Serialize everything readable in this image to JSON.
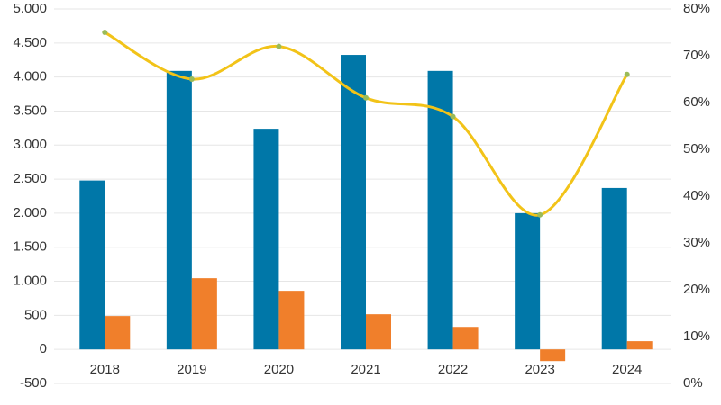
{
  "chart_data": {
    "type": "bar",
    "categories": [
      "2018",
      "2019",
      "2020",
      "2021",
      "2022",
      "2023",
      "2024"
    ],
    "series": [
      {
        "color": "#0077a8",
        "values": [
          2480,
          4090,
          3240,
          4325,
          4090,
          2000,
          2370
        ]
      },
      {
        "color": "#f07f2b",
        "values": [
          490,
          1045,
          860,
          516,
          330,
          -172,
          120
        ]
      },
      {
        "type": "line",
        "axis": "y2",
        "color": "#f2c318",
        "marker_color": "#9bbb59",
        "values": [
          75,
          65,
          72,
          61,
          57,
          36,
          66
        ]
      }
    ],
    "ylim": [
      -500,
      5000
    ],
    "yticks": [
      -500,
      0,
      500,
      {
        "value": 1000,
        "label": "1.000"
      },
      {
        "value": 1500,
        "label": "1.500"
      },
      {
        "value": 2000,
        "label": "2.000"
      },
      {
        "value": 2500,
        "label": "2.500"
      },
      {
        "value": 3000,
        "label": "3.000"
      },
      {
        "value": 3500,
        "label": "3.500"
      },
      {
        "value": 4000,
        "label": "4.000"
      },
      {
        "value": 4500,
        "label": "4.500"
      },
      {
        "value": 5000,
        "label": "5.000"
      }
    ],
    "y2lim": [
      0,
      80
    ],
    "y2ticks": [
      {
        "value": 0,
        "label": "0%"
      },
      {
        "value": 10,
        "label": "10%"
      },
      {
        "value": 20,
        "label": "20%"
      },
      {
        "value": 30,
        "label": "30%"
      },
      {
        "value": 40,
        "label": "40%"
      },
      {
        "value": 50,
        "label": "50%"
      },
      {
        "value": 60,
        "label": "60%"
      },
      {
        "value": 70,
        "label": "70%"
      },
      {
        "value": 80,
        "label": "80%"
      }
    ],
    "grid": true
  }
}
